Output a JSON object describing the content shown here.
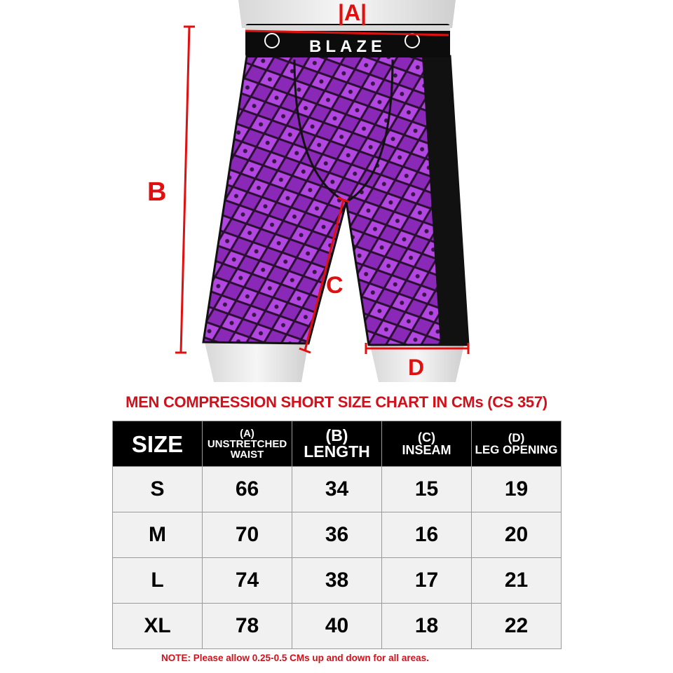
{
  "product_image": {
    "brand_logo_text": "BLAZE",
    "measurement_labels": {
      "a": "|A|",
      "b": "B",
      "c": "C",
      "d": "D"
    },
    "colors": {
      "measure_red": "#e01010",
      "fabric_purple": "#9a2ec8",
      "panel_black": "#111111"
    }
  },
  "title": "MEN COMPRESSION SHORT SIZE CHART IN CMs (CS 357)",
  "table": {
    "headers": [
      {
        "top": "",
        "main": "SIZE"
      },
      {
        "top": "(A)",
        "main": "UNSTRETCHED WAIST"
      },
      {
        "top": "(B)",
        "main": "LENGTH"
      },
      {
        "top": "(C)",
        "main": "INSEAM"
      },
      {
        "top": "(D)",
        "main": "LEG OPENING"
      }
    ],
    "rows": [
      [
        "S",
        "66",
        "34",
        "15",
        "19"
      ],
      [
        "M",
        "70",
        "36",
        "16",
        "20"
      ],
      [
        "L",
        "74",
        "38",
        "17",
        "21"
      ],
      [
        "XL",
        "78",
        "40",
        "18",
        "22"
      ]
    ]
  },
  "note": "NOTE: Please allow 0.25-0.5 CMs up and down for all areas."
}
